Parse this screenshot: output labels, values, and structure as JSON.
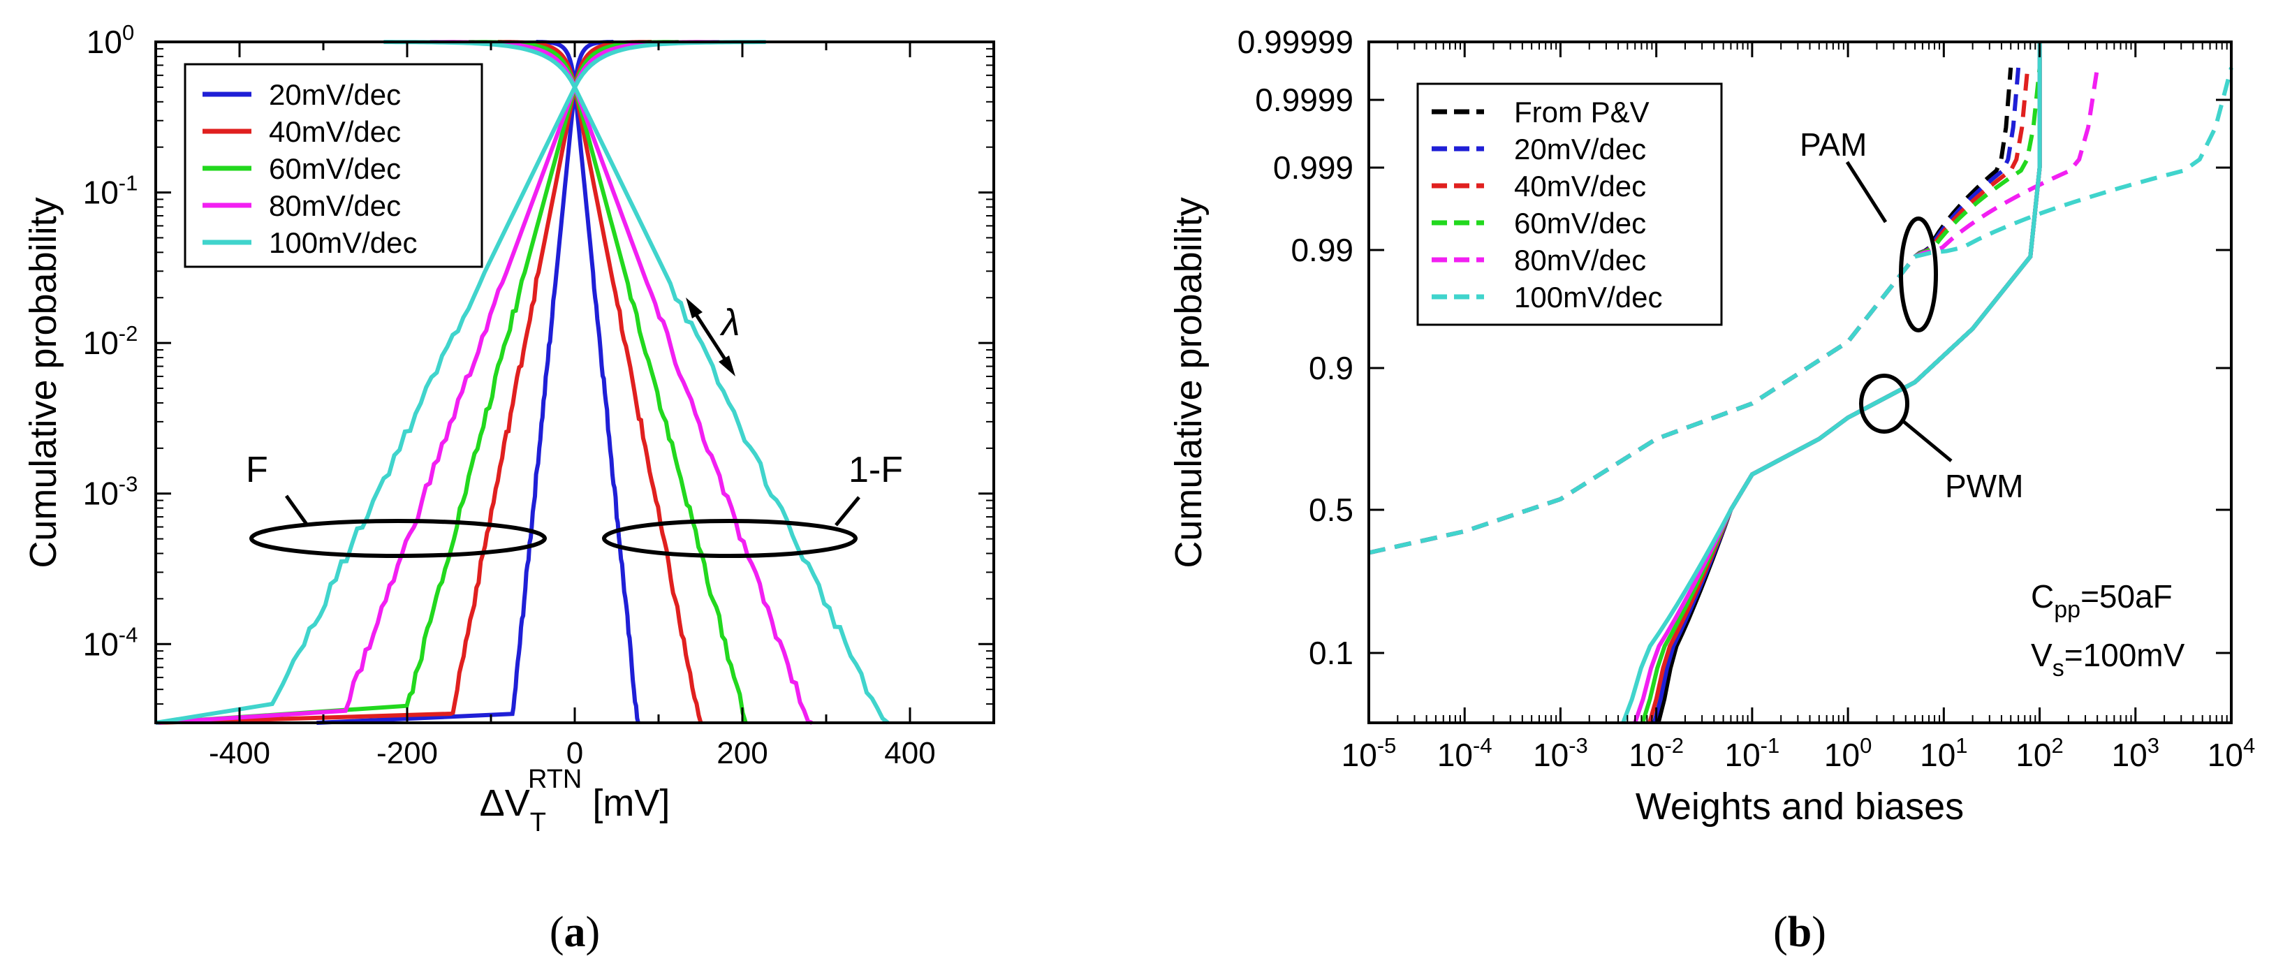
{
  "panels": {
    "a": {
      "caption_open": "(",
      "caption_letter": "a",
      "caption_close": ")",
      "ylabel": "Cumulative probability",
      "xlabel_delta": "ΔV",
      "xlabel_sub": "T",
      "xlabel_sup": "RTN",
      "xlabel_unit": " [mV]",
      "annotations": {
        "left": "F",
        "right": "1-F",
        "lambda": "λ"
      }
    },
    "b": {
      "caption_open": "(",
      "caption_letter": "b",
      "caption_close": ")",
      "ylabel": "Cumulative probability",
      "xlabel": "Weights and biases",
      "annotations": {
        "pam": "PAM",
        "pwm": "PWM",
        "cpp_main": "C",
        "cpp_sub": "pp",
        "cpp_val": "=50aF",
        "vs_main": "V",
        "vs_sub": "s",
        "vs_val": "=100mV"
      }
    }
  },
  "chart_data": [
    {
      "type": "line",
      "panel": "a",
      "xlabel": "ΔV_T^RTN [mV]",
      "ylabel": "Cumulative probability",
      "xlim": [
        -500,
        500
      ],
      "ylim": [
        3e-05,
        1
      ],
      "yscale": "log",
      "xticks": [
        -400,
        -200,
        0,
        200,
        400
      ],
      "xtick_labels": [
        "-400",
        "-200",
        "0",
        "200",
        "400"
      ],
      "yticks": [
        0.0001,
        0.001,
        0.01,
        0.1,
        1
      ],
      "ytick_labels": [
        {
          "base": "10",
          "exp": "-4"
        },
        {
          "base": "10",
          "exp": "-3"
        },
        {
          "base": "10",
          "exp": "-2"
        },
        {
          "base": "10",
          "exp": "-1"
        },
        {
          "base": "10",
          "exp": "0"
        }
      ],
      "legend_position": "top-left",
      "series": [
        {
          "name": "20mV/dec",
          "color": "#1f1fd6",
          "decay_mV": 7.7
        },
        {
          "name": "40mV/dec",
          "color": "#e0201f",
          "decay_mV": 15.3
        },
        {
          "name": "60mV/dec",
          "color": "#22d81e",
          "decay_mV": 21.1
        },
        {
          "name": "80mV/dec",
          "color": "#f21ff2",
          "decay_mV": 28.8
        },
        {
          "name": "100mV/dec",
          "color": "#40d4cc",
          "decay_mV": 38.0
        }
      ]
    },
    {
      "type": "line",
      "panel": "b",
      "xlabel": "Weights and biases",
      "ylabel": "Cumulative probability",
      "xscale": "log",
      "xlim": [
        1e-05,
        10000.0
      ],
      "ylim": [
        0.03,
        0.99999
      ],
      "xtick_labels": [
        {
          "base": "10",
          "exp": "-5"
        },
        {
          "base": "10",
          "exp": "-4"
        },
        {
          "base": "10",
          "exp": "-3"
        },
        {
          "base": "10",
          "exp": "-2"
        },
        {
          "base": "10",
          "exp": "-1"
        },
        {
          "base": "10",
          "exp": "0"
        },
        {
          "base": "10",
          "exp": "1"
        },
        {
          "base": "10",
          "exp": "2"
        },
        {
          "base": "10",
          "exp": "3"
        },
        {
          "base": "10",
          "exp": "4"
        }
      ],
      "yticks": [
        0.1,
        0.5,
        0.9,
        0.99,
        0.999,
        0.9999,
        0.99999
      ],
      "ytick_labels": [
        "0.1",
        "0.5",
        "0.9",
        "0.99",
        "0.999",
        "0.9999",
        "0.99999"
      ],
      "legend_position": "top-left",
      "series": [
        {
          "name": "From P&V",
          "color": "#000000",
          "pam_tail_end_x": 50,
          "pwm_start_x": 0.0105
        },
        {
          "name": "20mV/dec",
          "color": "#1f1fd6",
          "pam_tail_end_x": 60,
          "pwm_start_x": 0.0095
        },
        {
          "name": "40mV/dec",
          "color": "#e0201f",
          "pam_tail_end_x": 75,
          "pwm_start_x": 0.0085
        },
        {
          "name": "60mV/dec",
          "color": "#22d81e",
          "pam_tail_end_x": 100,
          "pwm_start_x": 0.0072
        },
        {
          "name": "80mV/dec",
          "color": "#f21ff2",
          "pam_tail_end_x": 400,
          "pwm_start_x": 0.006
        },
        {
          "name": "100mV/dec",
          "color": "#40d4cc",
          "pam_tail_end_x": 10000,
          "pwm_start_x": 0.0045
        }
      ]
    }
  ]
}
